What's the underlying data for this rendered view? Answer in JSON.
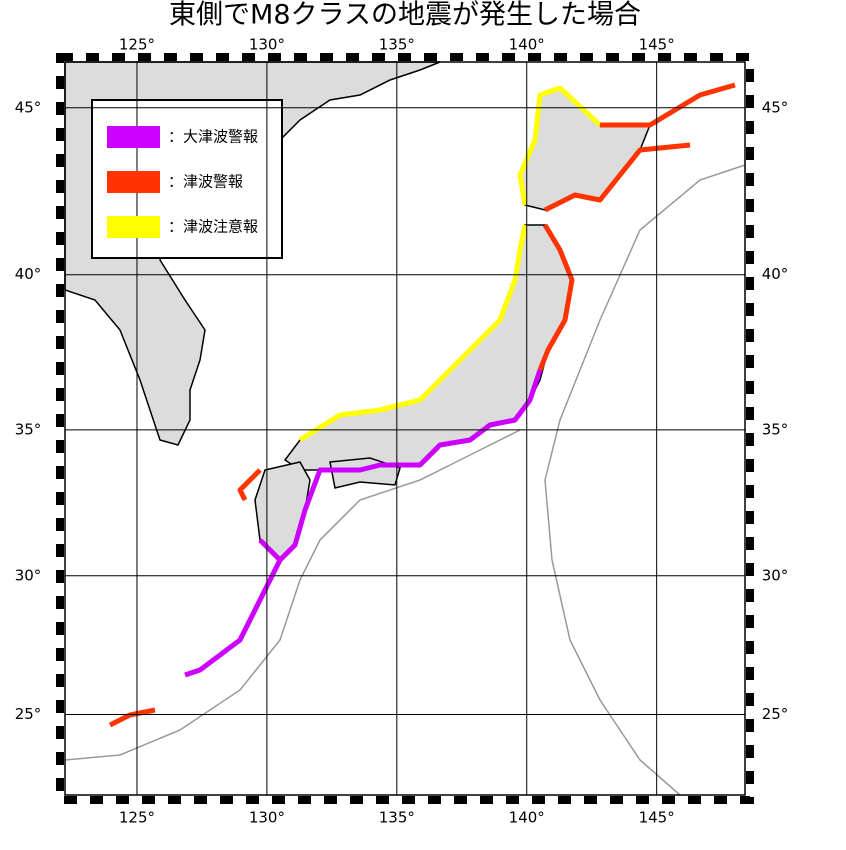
{
  "title": "東側でM8クラスの地震が発生した場合",
  "legend": [
    {
      "label": "：大津波警報",
      "color": "#cc00ff"
    },
    {
      "label": "：津波警報",
      "color": "#ff3300"
    },
    {
      "label": "：津波注意報",
      "color": "#ffff00"
    }
  ],
  "map": {
    "xlim": [
      122.23,
      148.4
    ],
    "ylim": [
      22,
      46.3
    ],
    "xticks": [
      {
        "value": 125,
        "label": "125°"
      },
      {
        "value": 130,
        "label": "130°"
      },
      {
        "value": 135,
        "label": "135°"
      },
      {
        "value": 140,
        "label": "140°"
      },
      {
        "value": 145,
        "label": "145°"
      }
    ],
    "yticks": [
      {
        "value": 25,
        "label": "25°"
      },
      {
        "value": 30,
        "label": "30°"
      },
      {
        "value": 35,
        "label": "35°"
      },
      {
        "value": 40,
        "label": "40°"
      },
      {
        "value": 45,
        "label": "45°"
      }
    ]
  }
}
